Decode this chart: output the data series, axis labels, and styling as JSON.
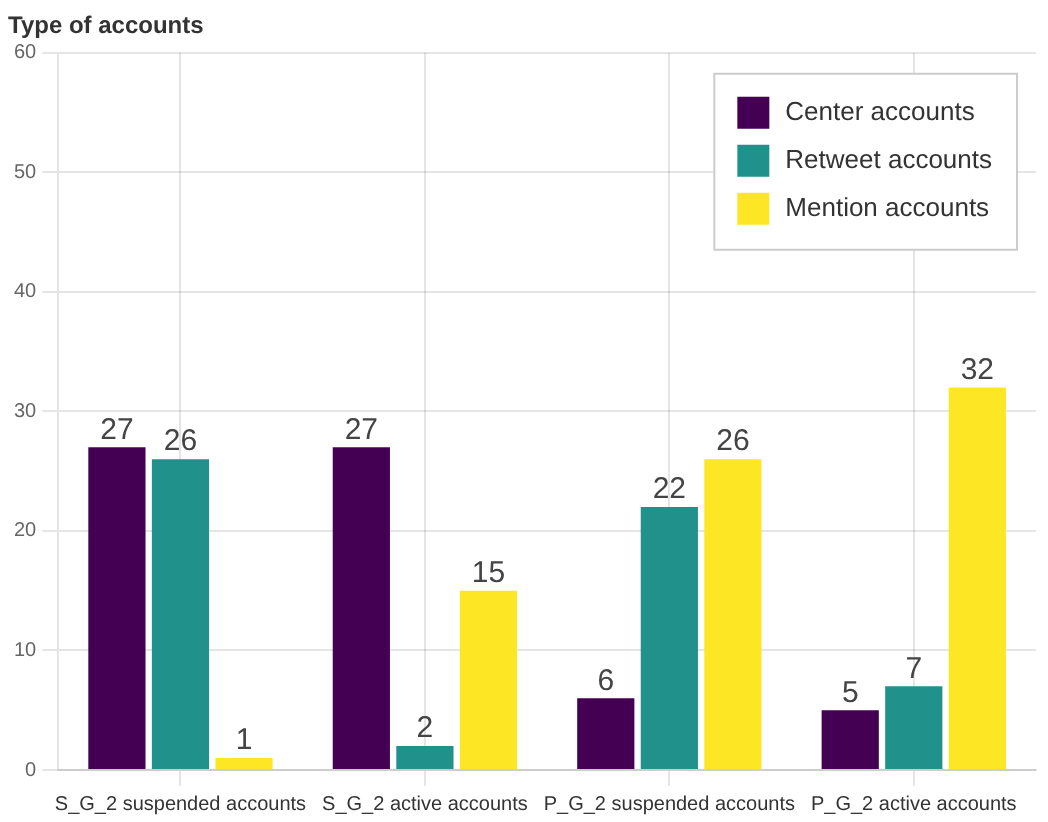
{
  "chart_data": {
    "type": "bar",
    "title": "Type of accounts",
    "categories": [
      "S_G_2 suspended accounts",
      "S_G_2 active accounts",
      "P_G_2 suspended accounts",
      "P_G_2 active accounts"
    ],
    "series": [
      {
        "name": "Center accounts",
        "color": "#440154",
        "values": [
          27,
          27,
          6,
          5
        ]
      },
      {
        "name": "Retweet accounts",
        "color": "#21918c",
        "values": [
          26,
          2,
          22,
          7
        ]
      },
      {
        "name": "Mention accounts",
        "color": "#fde725",
        "values": [
          1,
          15,
          26,
          32
        ]
      }
    ],
    "ylim": [
      0,
      60
    ],
    "yticks": [
      0,
      10,
      20,
      30,
      40,
      50,
      60
    ],
    "grid": true,
    "legend": "top right",
    "data_labels": true
  }
}
